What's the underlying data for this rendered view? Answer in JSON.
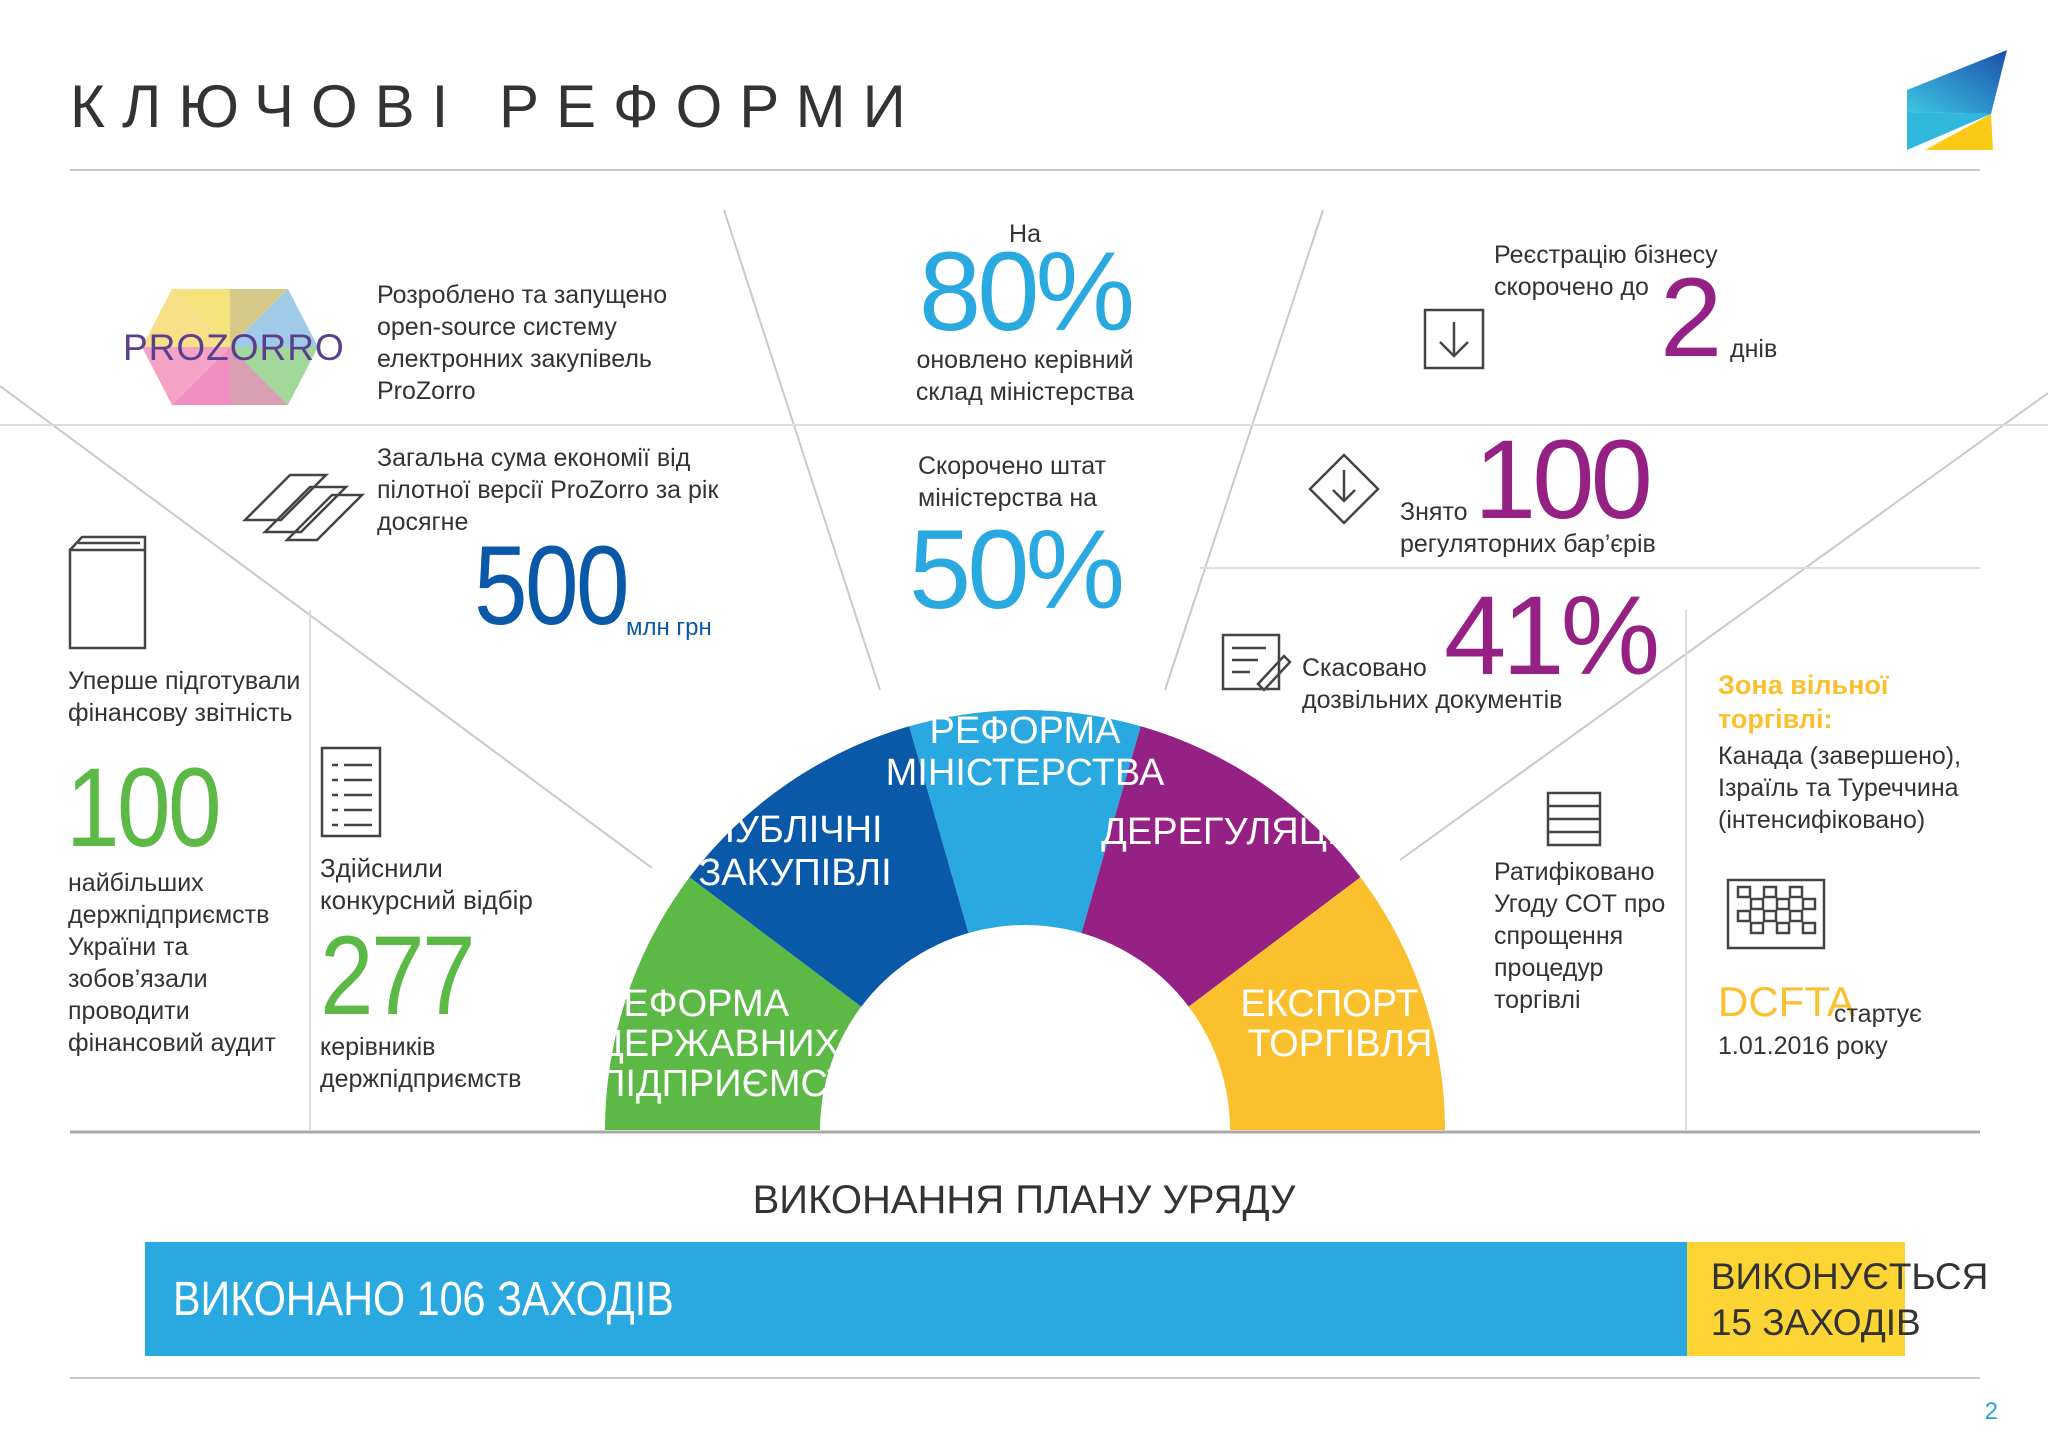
{
  "page": {
    "title": "КЛЮЧОВІ РЕФОРМИ",
    "page_number": "2"
  },
  "colors": {
    "green": "#5cb946",
    "dark_blue": "#0a58a8",
    "light_blue": "#2aa9e0",
    "purple": "#962185",
    "yellow": "#fbc02d",
    "gray_text": "#333333"
  },
  "sectors": [
    {
      "label": "РЕФОРМА ДЕРЖАВНИХ ПІДПРИЄМСТВ",
      "color": "#5cb946"
    },
    {
      "label": "ПУБЛІЧНІ ЗАКУПІВЛІ",
      "color": "#0a58a8"
    },
    {
      "label": "РЕФОРМА МІНІСТЕРСТВА",
      "color": "#2aa9e0"
    },
    {
      "label": "ДЕРЕГУЛЯЦІЯ",
      "color": "#962185"
    },
    {
      "label": "ЕКСПОРТ І ТОРГІВЛЯ",
      "color": "#fbc02d"
    }
  ],
  "prozorro": {
    "logo_text": "PROZORRO",
    "text": "Розроблено та запущено open-source систему електронних закупівель ProZorro"
  },
  "savings": {
    "text": "Загальна сума економії від пілотної версії ProZorro за рік досягне",
    "value": "500",
    "unit": "млн грн"
  },
  "financial": {
    "text": "Уперше підготували фінансову звітність",
    "value": "100",
    "caption": "найбільших держпідприємств України та зобов’язали проводити фінансовий аудит"
  },
  "selection": {
    "text": "Здійснили конкурсний відбір",
    "value": "277",
    "caption": "керівників держпідприємств"
  },
  "ministry_renewed": {
    "pre": "На",
    "value": "80%",
    "caption": "оновлено керівний склад міністерства"
  },
  "ministry_staff": {
    "text": "Скорочено штат міністерства на",
    "value": "50%"
  },
  "registration": {
    "text": "Реєстрацію бізнесу скорочено до",
    "value": "2",
    "unit": "днів"
  },
  "barriers": {
    "pre": "Знято",
    "value": "100",
    "caption": "регуляторних бар’єрів"
  },
  "permits": {
    "pre": "Скасовано",
    "value": "41%",
    "caption": "дозвільних документів"
  },
  "wto": {
    "text": "Ратифіковано Угоду СОТ про спрощення процедур торгівлі"
  },
  "ftz": {
    "title": "Зона вільної торгівлі:",
    "text": "Канада (завершено), Ізраїль та Туреччина (інтенсифіковано)"
  },
  "dcfta": {
    "label": "DCFTA",
    "text_1": "стартує",
    "text_2": "1.01.2016 року"
  },
  "plan": {
    "title": "ВИКОНАННЯ ПЛАНУ УРЯДУ",
    "done_label": "ВИКОНАНО 106 ЗАХОДІВ",
    "progress_label_1": "ВИКОНУЄТЬСЯ",
    "progress_label_2": "15 ЗАХОДІВ",
    "done_count": 106,
    "progress_count": 15
  }
}
